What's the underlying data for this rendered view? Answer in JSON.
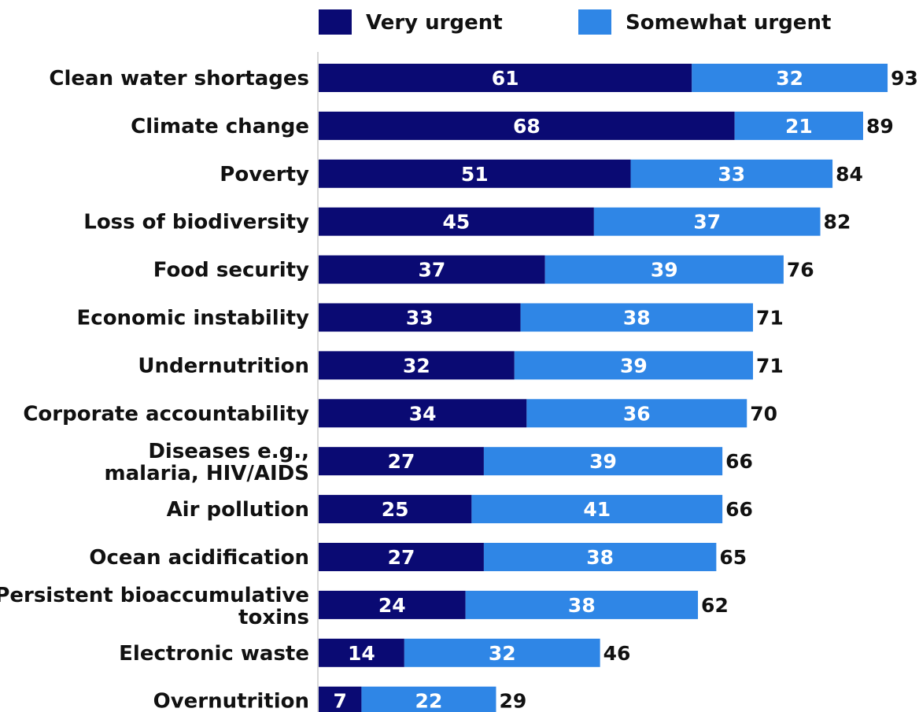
{
  "chart_data": {
    "type": "bar",
    "orientation": "horizontal",
    "stacked": true,
    "categories": [
      [
        "Clean water shortages"
      ],
      [
        "Climate change"
      ],
      [
        "Poverty"
      ],
      [
        "Loss of biodiversity"
      ],
      [
        "Food security"
      ],
      [
        "Economic instability"
      ],
      [
        "Undernutrition"
      ],
      [
        "Corporate accountability"
      ],
      [
        "Diseases e.g.,",
        "malaria, HIV/AIDS"
      ],
      [
        "Air pollution"
      ],
      [
        "Ocean acidification"
      ],
      [
        "Persistent bioaccumulative",
        "toxins"
      ],
      [
        "Electronic waste"
      ],
      [
        "Overnutrition"
      ]
    ],
    "series": [
      {
        "name": "Very urgent",
        "color": "#0a0a73",
        "values": [
          61,
          68,
          51,
          45,
          37,
          33,
          32,
          34,
          27,
          25,
          27,
          24,
          14,
          7
        ]
      },
      {
        "name": "Somewhat urgent",
        "color": "#2f86e6",
        "values": [
          32,
          21,
          33,
          37,
          39,
          38,
          39,
          36,
          39,
          41,
          38,
          38,
          32,
          22
        ]
      }
    ],
    "totals": [
      93,
      89,
      84,
      82,
      76,
      71,
      71,
      70,
      66,
      66,
      65,
      62,
      46,
      29
    ],
    "legend_position": "top",
    "grid": false,
    "xlim": [
      0,
      100
    ]
  }
}
